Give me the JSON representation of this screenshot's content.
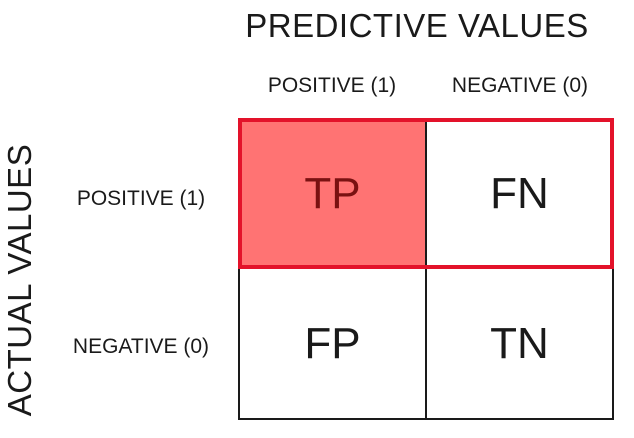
{
  "title": "PREDICTIVE VALUES",
  "side_title": "ACTUAL VALUES",
  "columns": [
    "POSITIVE (1)",
    "NEGATIVE (0)"
  ],
  "rows": [
    "POSITIVE (1)",
    "NEGATIVE (0)"
  ],
  "cells": {
    "tp": "TP",
    "fn": "FN",
    "fp": "FP",
    "tn": "TN"
  },
  "colors": {
    "highlight_fill": "#ff7373",
    "highlight_text": "#7a1111",
    "highlight_border": "#e3122a",
    "grid_line": "#1a1a1a"
  }
}
